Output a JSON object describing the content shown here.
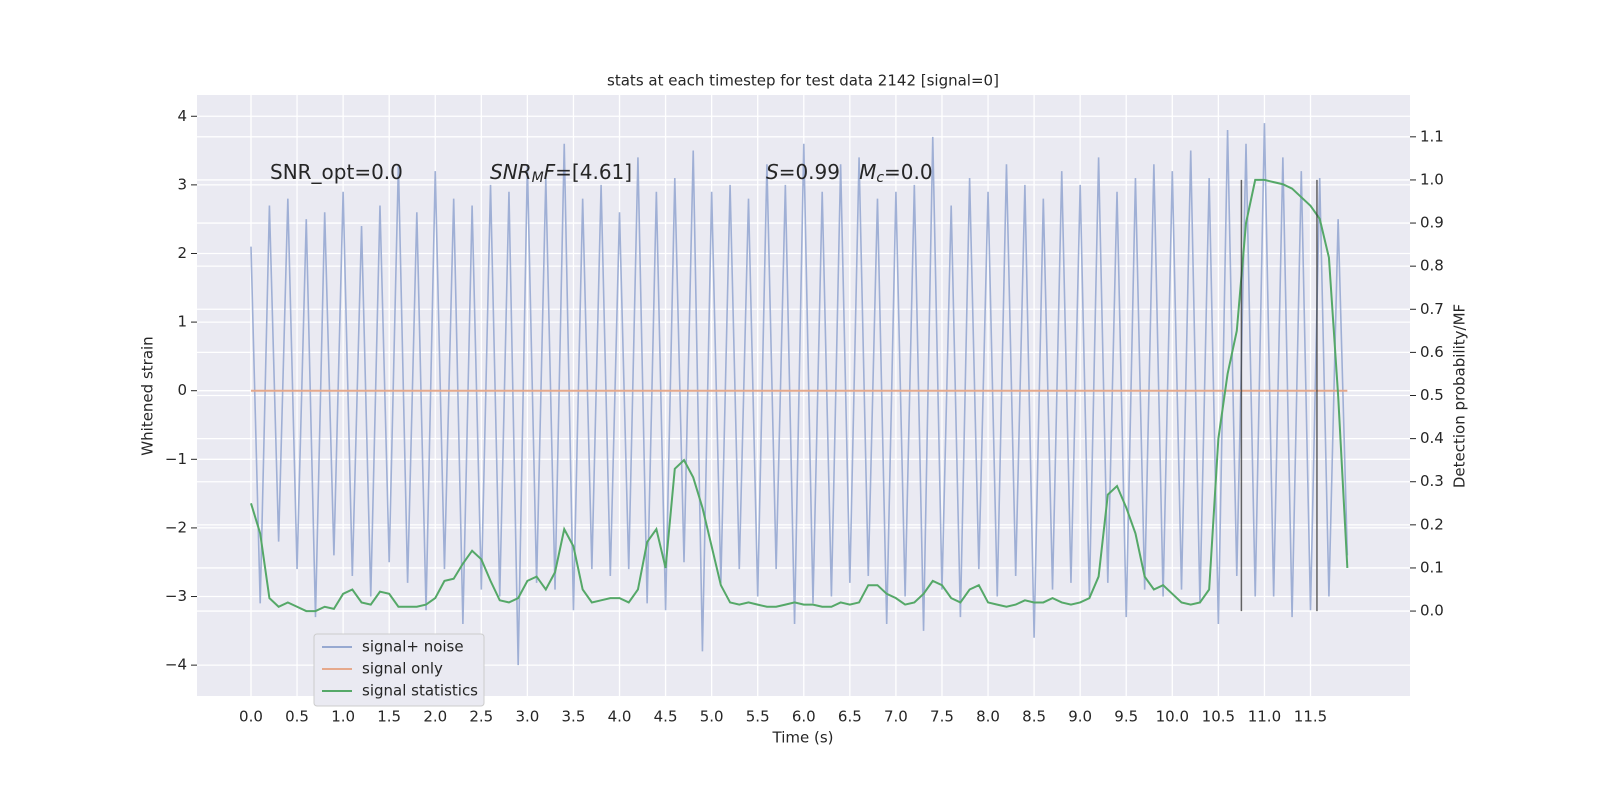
{
  "chart_data": {
    "type": "line",
    "title": "stats at each timestep for test data 2142 [signal=0]",
    "xlabel": "Time (s)",
    "ylabel": "Whitened strain",
    "y2label": "Detection probability/MF",
    "x": [
      0,
      0.1,
      0.2,
      0.3,
      0.4,
      0.5,
      0.6,
      0.7,
      0.8,
      0.9,
      1.0,
      1.1,
      1.2,
      1.3,
      1.4,
      1.5,
      1.6,
      1.7,
      1.8,
      1.9,
      2.0,
      2.1,
      2.2,
      2.3,
      2.4,
      2.5,
      2.6,
      2.7,
      2.8,
      2.9,
      3.0,
      3.1,
      3.2,
      3.3,
      3.4,
      3.5,
      3.6,
      3.7,
      3.8,
      3.9,
      4.0,
      4.1,
      4.2,
      4.3,
      4.4,
      4.5,
      4.6,
      4.7,
      4.8,
      4.9,
      5.0,
      5.1,
      5.2,
      5.3,
      5.4,
      5.5,
      5.6,
      5.7,
      5.8,
      5.9,
      6.0,
      6.1,
      6.2,
      6.3,
      6.4,
      6.5,
      6.6,
      6.7,
      6.8,
      6.9,
      7.0,
      7.1,
      7.2,
      7.3,
      7.4,
      7.5,
      7.6,
      7.7,
      7.8,
      7.9,
      8.0,
      8.1,
      8.2,
      8.3,
      8.4,
      8.5,
      8.6,
      8.7,
      8.8,
      8.9,
      9.0,
      9.1,
      9.2,
      9.3,
      9.4,
      9.5,
      9.6,
      9.7,
      9.8,
      9.9,
      10.0,
      10.1,
      10.2,
      10.3,
      10.4,
      10.5,
      10.6,
      10.7,
      10.8,
      10.9,
      11.0,
      11.1,
      11.2,
      11.3,
      11.4,
      11.5,
      11.6,
      11.7,
      11.8,
      11.9
    ],
    "series": [
      {
        "name": "signal+ noise",
        "color": "#97a9d1",
        "axis": "y",
        "values": [
          2.1,
          -3.1,
          2.7,
          -2.2,
          2.8,
          -2.6,
          2.5,
          -3.3,
          2.6,
          -2.4,
          2.9,
          -2.7,
          2.4,
          -3.0,
          2.7,
          -2.5,
          3.3,
          -2.8,
          2.6,
          -3.2,
          3.2,
          -2.6,
          2.8,
          -3.4,
          2.7,
          -2.9,
          3.0,
          -3.0,
          2.9,
          -4.0,
          3.3,
          -2.8,
          3.1,
          -2.9,
          3.6,
          -3.2,
          2.8,
          -2.6,
          3.0,
          -2.7,
          2.6,
          -2.6,
          3.4,
          -3.1,
          2.9,
          -3.2,
          3.1,
          -2.5,
          3.5,
          -3.8,
          2.9,
          -2.8,
          3.0,
          -2.6,
          2.8,
          -3.0,
          3.3,
          -2.6,
          3.0,
          -3.4,
          3.6,
          -3.1,
          2.9,
          -3.0,
          3.3,
          -2.8,
          3.4,
          -2.7,
          2.8,
          -3.4,
          2.9,
          -3.0,
          3.0,
          -3.5,
          3.7,
          -2.9,
          2.7,
          -3.3,
          3.1,
          -2.6,
          2.9,
          -3.0,
          3.3,
          -2.7,
          3.0,
          -3.6,
          2.8,
          -2.9,
          3.2,
          -2.8,
          3.0,
          -3.0,
          3.4,
          -2.8,
          2.9,
          -3.3,
          3.1,
          -2.9,
          3.3,
          -3.0,
          3.2,
          -2.9,
          3.5,
          -3.1,
          3.1,
          -3.4,
          3.8,
          -2.7,
          3.6,
          -3.0,
          3.9,
          -3.0,
          3.4,
          -3.3,
          3.2,
          -3.2,
          3.1,
          -3.0,
          2.5,
          -2.4
        ]
      },
      {
        "name": "signal only",
        "color": "#e6a98c",
        "axis": "y",
        "values": [
          0,
          0,
          0,
          0,
          0,
          0,
          0,
          0,
          0,
          0,
          0,
          0,
          0,
          0,
          0,
          0,
          0,
          0,
          0,
          0,
          0,
          0,
          0,
          0,
          0,
          0,
          0,
          0,
          0,
          0,
          0,
          0,
          0,
          0,
          0,
          0,
          0,
          0,
          0,
          0,
          0,
          0,
          0,
          0,
          0,
          0,
          0,
          0,
          0,
          0,
          0,
          0,
          0,
          0,
          0,
          0,
          0,
          0,
          0,
          0,
          0,
          0,
          0,
          0,
          0,
          0,
          0,
          0,
          0,
          0,
          0,
          0,
          0,
          0,
          0,
          0,
          0,
          0,
          0,
          0,
          0,
          0,
          0,
          0,
          0,
          0,
          0,
          0,
          0,
          0,
          0,
          0,
          0,
          0,
          0,
          0,
          0,
          0,
          0,
          0,
          0,
          0,
          0,
          0,
          0,
          0,
          0,
          0,
          0,
          0,
          0,
          0,
          0,
          0,
          0,
          0,
          0,
          0,
          0,
          0
        ]
      },
      {
        "name": "signal statistics",
        "color": "#55a868",
        "axis": "y2",
        "values": [
          0.25,
          0.18,
          0.03,
          0.01,
          0.02,
          0.01,
          0.0,
          0.0,
          0.01,
          0.005,
          0.04,
          0.05,
          0.02,
          0.015,
          0.045,
          0.04,
          0.01,
          0.01,
          0.01,
          0.015,
          0.03,
          0.07,
          0.075,
          0.11,
          0.14,
          0.12,
          0.07,
          0.025,
          0.02,
          0.03,
          0.07,
          0.08,
          0.05,
          0.09,
          0.19,
          0.15,
          0.05,
          0.02,
          0.025,
          0.03,
          0.03,
          0.02,
          0.05,
          0.16,
          0.19,
          0.1,
          0.33,
          0.35,
          0.31,
          0.24,
          0.15,
          0.06,
          0.02,
          0.015,
          0.02,
          0.015,
          0.01,
          0.01,
          0.015,
          0.02,
          0.015,
          0.015,
          0.01,
          0.01,
          0.02,
          0.015,
          0.02,
          0.06,
          0.06,
          0.04,
          0.03,
          0.015,
          0.02,
          0.04,
          0.07,
          0.06,
          0.03,
          0.02,
          0.05,
          0.06,
          0.02,
          0.015,
          0.01,
          0.015,
          0.025,
          0.02,
          0.02,
          0.03,
          0.02,
          0.015,
          0.02,
          0.03,
          0.08,
          0.27,
          0.29,
          0.24,
          0.18,
          0.08,
          0.05,
          0.06,
          0.04,
          0.02,
          0.015,
          0.02,
          0.05,
          0.4,
          0.55,
          0.65,
          0.9,
          1.0,
          1.0,
          0.995,
          0.99,
          0.98,
          0.96,
          0.94,
          0.91,
          0.82,
          0.5,
          0.1
        ]
      }
    ],
    "vlines": [
      10.75,
      11.57
    ],
    "annotations": [
      [
        {
          "text": "SNR_opt=0.0"
        }
      ],
      [
        {
          "text": "SNR",
          "italic": true
        },
        {
          "text": "M",
          "italic": true,
          "sub": true
        },
        {
          "text": "F",
          "italic": true
        },
        {
          "text": "=[4.61]"
        }
      ],
      [
        {
          "text": "S",
          "italic": true
        },
        {
          "text": "=0.99   "
        },
        {
          "text": "M",
          "italic": true
        },
        {
          "text": "c",
          "italic": true,
          "sub": true
        },
        {
          "text": "=0.0"
        }
      ]
    ],
    "xlim": [
      -0.586,
      12.58
    ],
    "xticks": [
      {
        "value": 0,
        "label": "0.0"
      },
      {
        "value": 0.5,
        "label": "0.5"
      },
      {
        "value": 1,
        "label": "1.0"
      },
      {
        "value": 1.5,
        "label": "1.5"
      },
      {
        "value": 2,
        "label": "2.0"
      },
      {
        "value": 2.5,
        "label": "2.5"
      },
      {
        "value": 3,
        "label": "3.0"
      },
      {
        "value": 3.5,
        "label": "3.5"
      },
      {
        "value": 4,
        "label": "4.0"
      },
      {
        "value": 4.5,
        "label": "4.5"
      },
      {
        "value": 5,
        "label": "5.0"
      },
      {
        "value": 5.5,
        "label": "5.5"
      },
      {
        "value": 6,
        "label": "6.0"
      },
      {
        "value": 6.5,
        "label": "6.5"
      },
      {
        "value": 7,
        "label": "7.0"
      },
      {
        "value": 7.5,
        "label": "7.5"
      },
      {
        "value": 8,
        "label": "8.0"
      },
      {
        "value": 8.5,
        "label": "8.5"
      },
      {
        "value": 9,
        "label": "9.0"
      },
      {
        "value": 9.5,
        "label": "9.5"
      },
      {
        "value": 10,
        "label": "10.0"
      },
      {
        "value": 10.5,
        "label": "10.5"
      },
      {
        "value": 11,
        "label": "11.0"
      },
      {
        "value": 11.5,
        "label": "11.5"
      }
    ],
    "ylim": [
      -4.45,
      4.31
    ],
    "yticks": [
      {
        "value": -4,
        "label": "−4"
      },
      {
        "value": -3,
        "label": "−3"
      },
      {
        "value": -2,
        "label": "−2"
      },
      {
        "value": -1,
        "label": "−1"
      },
      0,
      1,
      2,
      3,
      4
    ],
    "y2lim": [
      -0.197,
      1.197
    ],
    "y2ticks": [
      {
        "value": 0,
        "label": "0.0"
      },
      {
        "value": 0.1,
        "label": "0.1"
      },
      {
        "value": 0.2,
        "label": "0.2"
      },
      {
        "value": 0.3,
        "label": "0.3"
      },
      {
        "value": 0.4,
        "label": "0.4"
      },
      {
        "value": 0.5,
        "label": "0.5"
      },
      {
        "value": 0.6,
        "label": "0.6"
      },
      {
        "value": 0.7,
        "label": "0.7"
      },
      {
        "value": 0.8,
        "label": "0.8"
      },
      {
        "value": 0.9,
        "label": "0.9"
      },
      {
        "value": 1.0,
        "label": "1.0"
      },
      {
        "value": 1.1,
        "label": "1.1"
      }
    ],
    "grid": true,
    "legend": "lower left"
  }
}
